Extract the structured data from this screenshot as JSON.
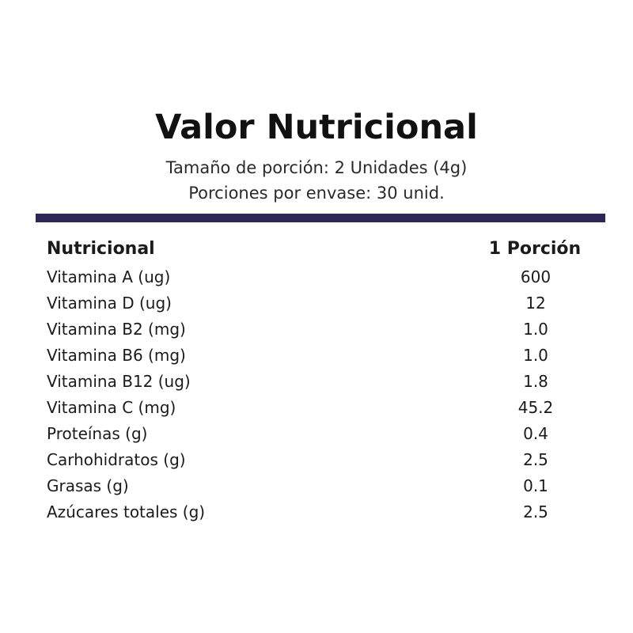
{
  "header": {
    "title": "Valor Nutricional",
    "serving_size": "Tamaño de porción: 2 Unidades (4g)",
    "servings_per_container": "Porciones por envase: 30 unid."
  },
  "table": {
    "col_name_header": "Nutricional",
    "col_value_header": "1 Porción",
    "rows": [
      {
        "name": "Vitamina A (ug)",
        "value": "600"
      },
      {
        "name": "Vitamina D (ug)",
        "value": "12"
      },
      {
        "name": "Vitamina B2 (mg)",
        "value": "1.0"
      },
      {
        "name": "Vitamina B6 (mg)",
        "value": "1.0"
      },
      {
        "name": "Vitamina B12 (ug)",
        "value": "1.8"
      },
      {
        "name": "Vitamina C (mg)",
        "value": "45.2"
      },
      {
        "name": "Proteínas (g)",
        "value": "0.4"
      },
      {
        "name": "Carhohidratos (g)",
        "value": "2.5"
      },
      {
        "name": "Grasas (g)",
        "value": "0.1"
      },
      {
        "name": "Azúcares totales (g)",
        "value": "2.5"
      }
    ]
  },
  "colors": {
    "divider": "#2d2656",
    "text": "#1b1b1b"
  }
}
